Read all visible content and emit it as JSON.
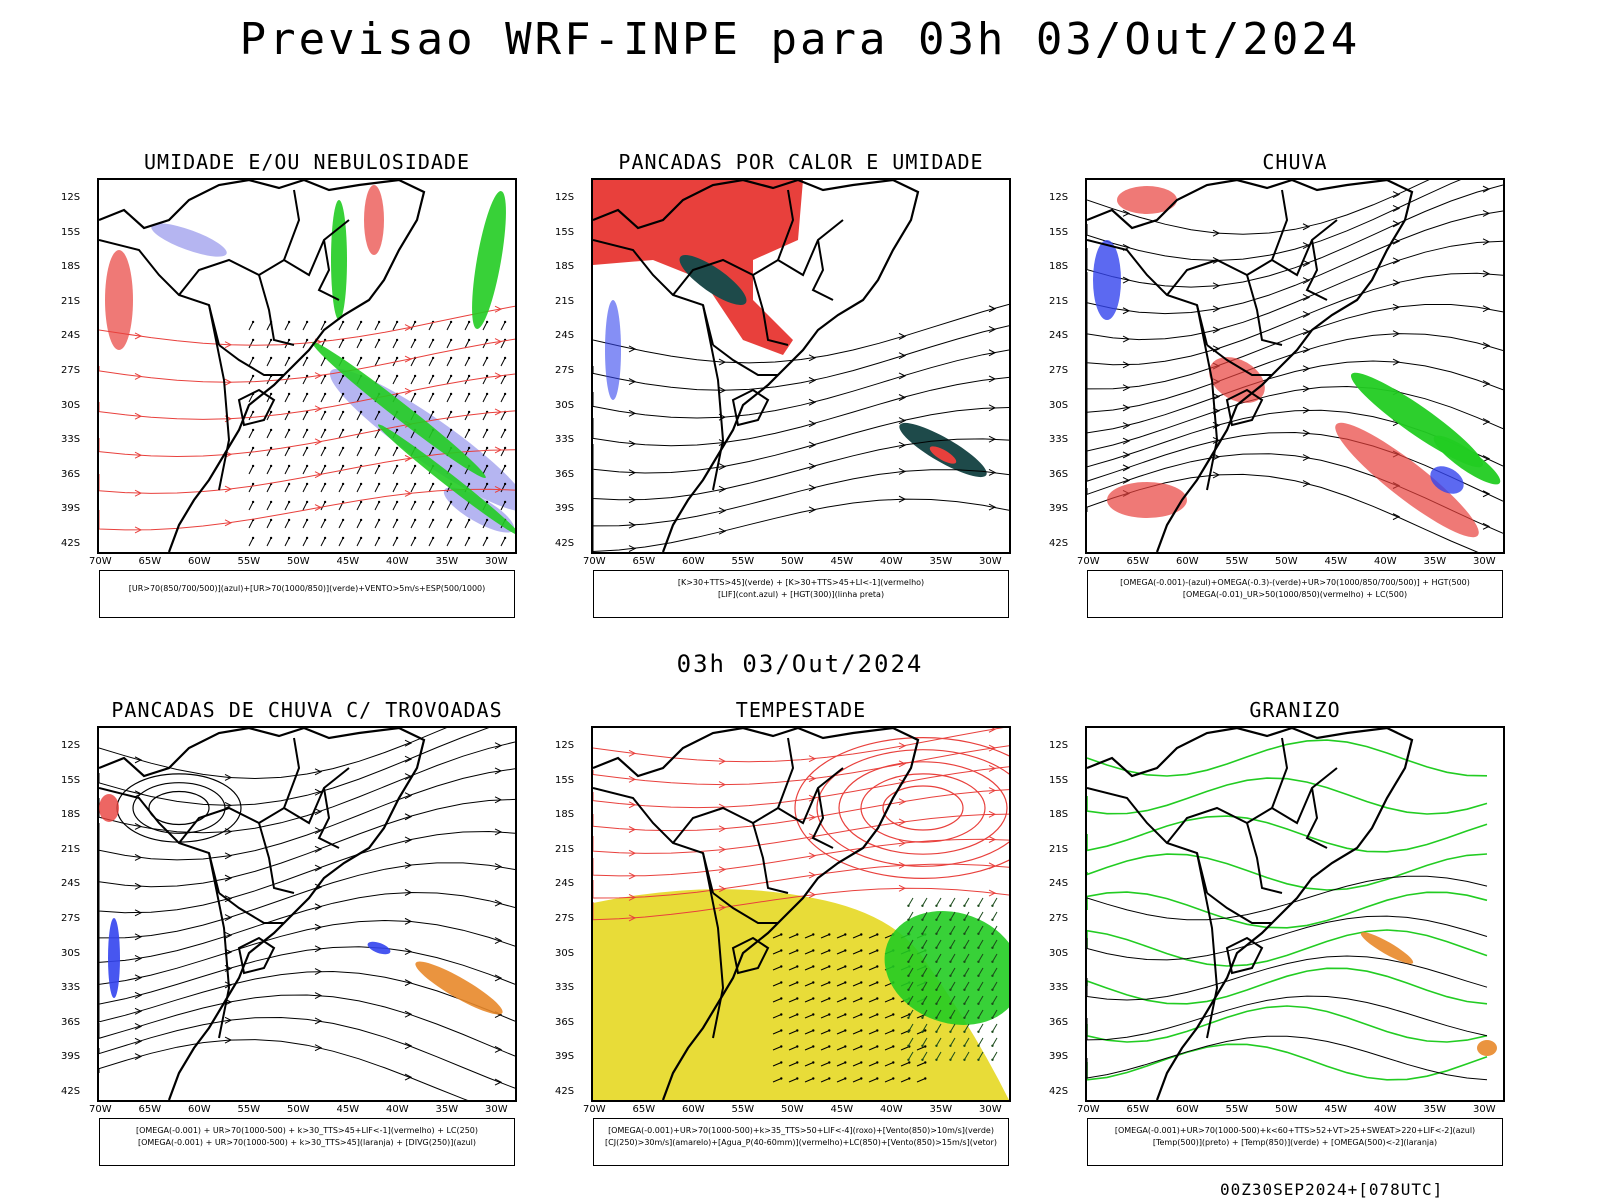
{
  "header": {
    "title": "Previsao WRF-INPE  para 03h 03/Out/2024"
  },
  "middle": {
    "title": "03h 03/Out/2024"
  },
  "footer": {
    "code": "00Z30SEP2024+[078UTC]"
  },
  "axes": {
    "lat_labels": [
      "12S",
      "15S",
      "18S",
      "21S",
      "24S",
      "27S",
      "30S",
      "33S",
      "36S",
      "39S",
      "42S"
    ],
    "lon_labels": [
      "70W",
      "65W",
      "60W",
      "55W",
      "50W",
      "45W",
      "40W",
      "35W",
      "30W"
    ]
  },
  "colors": {
    "red": "#e8403c",
    "green": "#22cc22",
    "blue": "#3344ee",
    "lavender": "#a8a8ee",
    "yellow": "#e8dc38",
    "teal": "#1e4a4a",
    "orange": "#e8882a"
  },
  "panels": [
    {
      "title": "UMIDADE E/OU NEBULOSIDADE",
      "legend": [
        "[UR>70(850/700/500)](azul)+[UR>70(1000/850)](verde)+VENTO>5m/s+ESP(500/1000)"
      ]
    },
    {
      "title": "PANCADAS POR CALOR E UMIDADE",
      "legend": [
        "[K>30+TTS>45](verde) + [K>30+TTS>45+LI<-1](vermelho)",
        "[LIF](cont.azul) + [HGT(300)](linha preta)"
      ]
    },
    {
      "title": "CHUVA",
      "legend": [
        "[OMEGA(-0.001)-(azul)+OMEGA(-0.3)-(verde)+UR>70(1000/850/700/500)] + HGT(500)",
        "[OMEGA(-0.01)_UR>50(1000/850)(vermelho) + LC(500)"
      ]
    },
    {
      "title": "PANCADAS DE CHUVA C/ TROVOADAS",
      "legend": [
        "[OMEGA(-0.001) + UR>70(1000-500) + k>30_TTS>45+LIF<-1](vermelho) + LC(250)",
        "[OMEGA(-0.001) + UR>70(1000-500) + k>30_TTS>45](laranja) + [DIVG(250)](azul)"
      ]
    },
    {
      "title": "TEMPESTADE",
      "legend": [
        "[OMEGA(-0.001)+UR>70(1000-500)+k>35_TTS>50+LIF<-4](roxo)+[Vento(850)>10m/s](verde)",
        "[CJ(250)>30m/s](amarelo)+[Agua_P(40-60mm)](vermelho)+LC(850)+[Vento(850)>15m/s](vetor)"
      ]
    },
    {
      "title": "GRANIZO",
      "legend": [
        "[OMEGA(-0.001)+UR>70(1000-500)+k<60+TTS>52+VT>25+SWEAT>220+LIF<-2](azul)",
        "[Temp(500)](preto) + [Temp(850)](verde) + [OMEGA(500)<-2](laranja)"
      ]
    }
  ]
}
